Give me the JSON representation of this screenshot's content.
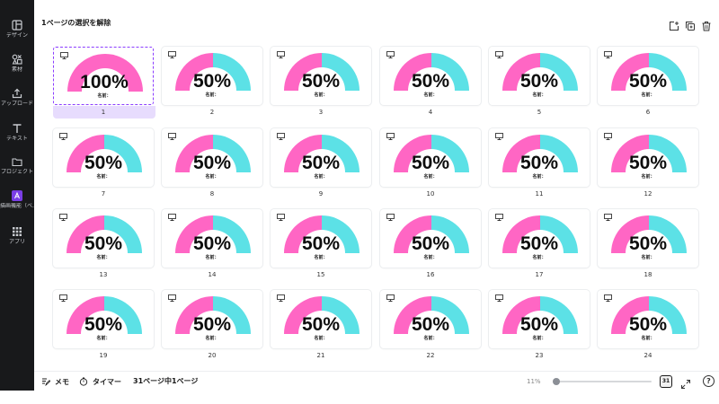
{
  "sidebar": {
    "items": [
      {
        "label": "デザイン",
        "icon": "layout-icon"
      },
      {
        "label": "素材",
        "icon": "shapes-icon"
      },
      {
        "label": "アップロード",
        "icon": "upload-icon"
      },
      {
        "label": "テキスト",
        "icon": "text-icon"
      },
      {
        "label": "プロジェクト",
        "icon": "folder-icon"
      },
      {
        "label": "描画機能（ベ...",
        "icon": "draw-app-icon"
      },
      {
        "label": "アプリ",
        "icon": "apps-grid-icon"
      }
    ]
  },
  "header": {
    "title": "1ページの選択を解除",
    "actions": [
      "add-page-icon",
      "duplicate-page-icon",
      "delete-page-icon"
    ]
  },
  "pages": [
    {
      "number": "1",
      "percent": "100%",
      "name_label": "名前：",
      "fill": 1.0,
      "selected": true
    },
    {
      "number": "2",
      "percent": "50%",
      "name_label": "名前：",
      "fill": 0.5
    },
    {
      "number": "3",
      "percent": "50%",
      "name_label": "名前：",
      "fill": 0.5
    },
    {
      "number": "4",
      "percent": "50%",
      "name_label": "名前：",
      "fill": 0.5
    },
    {
      "number": "5",
      "percent": "50%",
      "name_label": "名前：",
      "fill": 0.5
    },
    {
      "number": "6",
      "percent": "50%",
      "name_label": "名前：",
      "fill": 0.5
    },
    {
      "number": "7",
      "percent": "50%",
      "name_label": "名前：",
      "fill": 0.5
    },
    {
      "number": "8",
      "percent": "50%",
      "name_label": "名前：",
      "fill": 0.5
    },
    {
      "number": "9",
      "percent": "50%",
      "name_label": "名前：",
      "fill": 0.5
    },
    {
      "number": "10",
      "percent": "50%",
      "name_label": "名前：",
      "fill": 0.5
    },
    {
      "number": "11",
      "percent": "50%",
      "name_label": "名前：",
      "fill": 0.5
    },
    {
      "number": "12",
      "percent": "50%",
      "name_label": "名前：",
      "fill": 0.5
    },
    {
      "number": "13",
      "percent": "50%",
      "name_label": "名前：",
      "fill": 0.5
    },
    {
      "number": "14",
      "percent": "50%",
      "name_label": "名前：",
      "fill": 0.5
    },
    {
      "number": "15",
      "percent": "50%",
      "name_label": "名前：",
      "fill": 0.5
    },
    {
      "number": "16",
      "percent": "50%",
      "name_label": "名前：",
      "fill": 0.5
    },
    {
      "number": "17",
      "percent": "50%",
      "name_label": "名前：",
      "fill": 0.5
    },
    {
      "number": "18",
      "percent": "50%",
      "name_label": "名前：",
      "fill": 0.5
    },
    {
      "number": "19",
      "percent": "50%",
      "name_label": "名前：",
      "fill": 0.5
    },
    {
      "number": "20",
      "percent": "50%",
      "name_label": "名前：",
      "fill": 0.5
    },
    {
      "number": "21",
      "percent": "50%",
      "name_label": "名前：",
      "fill": 0.5
    },
    {
      "number": "22",
      "percent": "50%",
      "name_label": "名前：",
      "fill": 0.5
    },
    {
      "number": "23",
      "percent": "50%",
      "name_label": "名前：",
      "fill": 0.5
    },
    {
      "number": "24",
      "percent": "50%",
      "name_label": "名前：",
      "fill": 0.5
    }
  ],
  "colors": {
    "gauge_fill": "#ff66c4",
    "gauge_rest": "#5ce1e6",
    "selection": "#8b3dff",
    "sidebar_bg": "#18191b"
  },
  "footer": {
    "notes_label": "メモ",
    "timer_label": "タイマー",
    "page_status": "31ページ中1ページ",
    "zoom": "11%",
    "zoom_fraction": 0.0,
    "grid_view_label": "31",
    "help_label": "?"
  }
}
